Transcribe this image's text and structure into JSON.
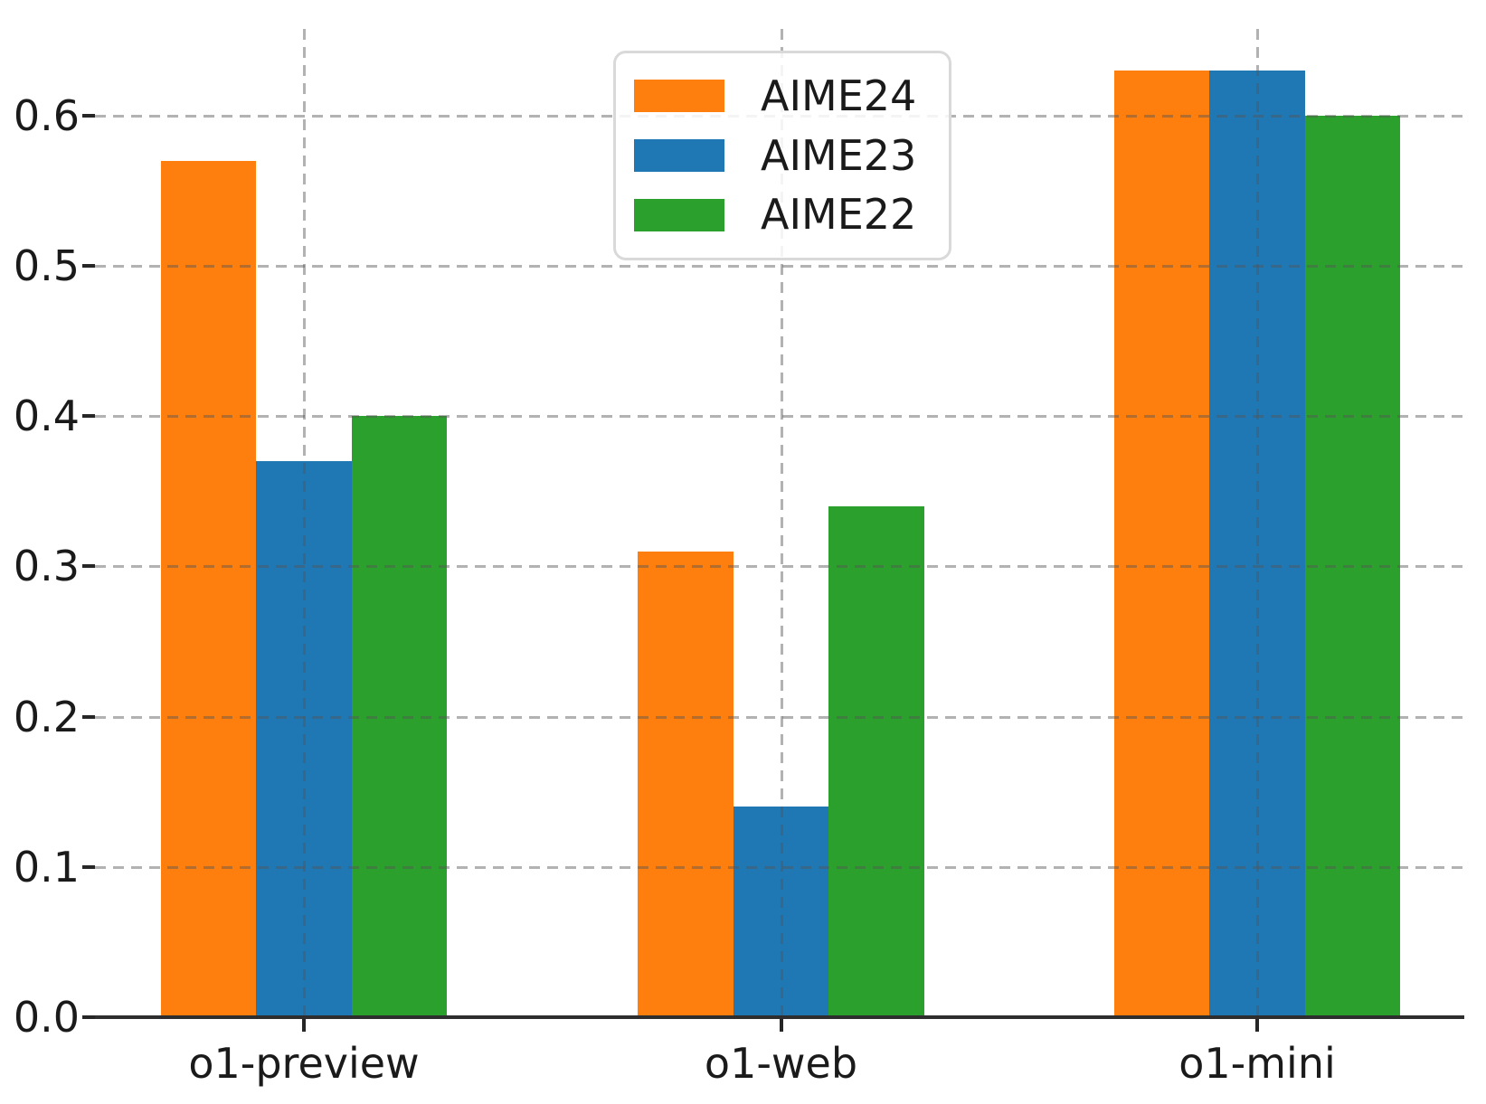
{
  "chart_data": {
    "type": "bar",
    "title": "",
    "xlabel": "",
    "ylabel": "",
    "categories": [
      "o1-preview",
      "o1-web",
      "o1-mini"
    ],
    "series": [
      {
        "name": "AIME24",
        "color": "#ff7f0e",
        "values": [
          0.57,
          0.31,
          0.63
        ]
      },
      {
        "name": "AIME23",
        "color": "#1f77b4",
        "values": [
          0.37,
          0.14,
          0.63
        ]
      },
      {
        "name": "AIME22",
        "color": "#2ca02c",
        "values": [
          0.4,
          0.34,
          0.6
        ]
      }
    ],
    "ylim": [
      0,
      0.66
    ],
    "yticks": [
      0.0,
      0.1,
      0.2,
      0.3,
      0.4,
      0.5,
      0.6
    ],
    "ytick_labels": [
      "0.0",
      "0.1",
      "0.2",
      "0.3",
      "0.4",
      "0.5",
      "0.6"
    ],
    "grid": "dashed gray gridlines on both axes, drawn over the bars",
    "legend_position": "upper center inside plot",
    "bars_per_group": 3
  },
  "colors": {
    "background": "#ffffff",
    "grid": "#b0b0b0",
    "axis": "#2e2e2e",
    "text": "#1a1a1a",
    "legend_border": "#d9d9d9"
  }
}
